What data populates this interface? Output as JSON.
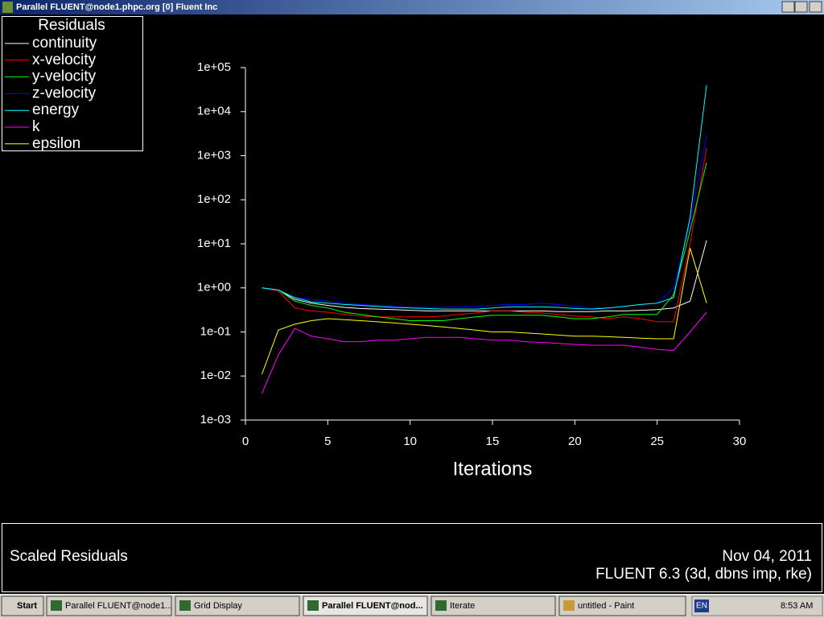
{
  "window": {
    "title": "Parallel FLUENT@node1.phpc.org [0] Fluent Inc"
  },
  "chart_data": {
    "type": "line",
    "legend_title": "Residuals",
    "x_label": "Iterations",
    "x": [
      1,
      2,
      3,
      4,
      5,
      6,
      7,
      8,
      9,
      10,
      11,
      12,
      13,
      14,
      15,
      16,
      17,
      18,
      19,
      20,
      21,
      22,
      23,
      24,
      25,
      26,
      27,
      28
    ],
    "xlim": [
      0,
      30
    ],
    "xticks": [
      0,
      5,
      10,
      15,
      20,
      25,
      30
    ],
    "ylim": [
      0.001,
      100000
    ],
    "log_y": true,
    "yticks": [
      {
        "value": 100000,
        "label": "1e+05"
      },
      {
        "value": 10000,
        "label": "1e+04"
      },
      {
        "value": 1000,
        "label": "1e+03"
      },
      {
        "value": 100,
        "label": "1e+02"
      },
      {
        "value": 10,
        "label": "1e+01"
      },
      {
        "value": 1,
        "label": "1e+00"
      },
      {
        "value": 0.1,
        "label": "1e-01"
      },
      {
        "value": 0.01,
        "label": "1e-02"
      },
      {
        "value": 0.001,
        "label": "1e-03"
      }
    ],
    "series": [
      {
        "name": "continuity",
        "color": "#ffffff",
        "values": [
          1,
          0.9,
          0.55,
          0.45,
          0.4,
          0.36,
          0.34,
          0.33,
          0.32,
          0.31,
          0.3,
          0.3,
          0.3,
          0.3,
          0.3,
          0.3,
          0.3,
          0.3,
          0.29,
          0.29,
          0.29,
          0.3,
          0.3,
          0.31,
          0.32,
          0.35,
          0.5,
          12
        ]
      },
      {
        "name": "x-velocity",
        "color": "#ff0000",
        "values": [
          1,
          0.85,
          0.35,
          0.3,
          0.28,
          0.25,
          0.23,
          0.22,
          0.22,
          0.22,
          0.22,
          0.23,
          0.25,
          0.27,
          0.3,
          0.3,
          0.28,
          0.27,
          0.25,
          0.23,
          0.22,
          0.2,
          0.22,
          0.2,
          0.17,
          0.17,
          10,
          1500
        ]
      },
      {
        "name": "y-velocity",
        "color": "#00ff00",
        "values": [
          1,
          0.9,
          0.5,
          0.4,
          0.35,
          0.28,
          0.25,
          0.22,
          0.2,
          0.18,
          0.18,
          0.18,
          0.2,
          0.22,
          0.24,
          0.24,
          0.24,
          0.24,
          0.22,
          0.2,
          0.2,
          0.22,
          0.25,
          0.25,
          0.25,
          0.7,
          20,
          700
        ]
      },
      {
        "name": "z-velocity",
        "color": "#0000ff",
        "values": [
          1,
          0.9,
          0.6,
          0.55,
          0.5,
          0.45,
          0.42,
          0.4,
          0.38,
          0.36,
          0.36,
          0.36,
          0.37,
          0.38,
          0.4,
          0.42,
          0.42,
          0.45,
          0.42,
          0.38,
          0.35,
          0.35,
          0.38,
          0.42,
          0.45,
          1,
          30,
          3000
        ]
      },
      {
        "name": "energy",
        "color": "#00ffff",
        "values": [
          1,
          0.9,
          0.6,
          0.48,
          0.45,
          0.42,
          0.4,
          0.38,
          0.36,
          0.35,
          0.34,
          0.33,
          0.33,
          0.33,
          0.35,
          0.37,
          0.37,
          0.37,
          0.36,
          0.34,
          0.33,
          0.35,
          0.38,
          0.42,
          0.45,
          0.6,
          40,
          40000
        ]
      },
      {
        "name": "k",
        "color": "#ff00ff",
        "values": [
          0.004,
          0.03,
          0.12,
          0.08,
          0.07,
          0.06,
          0.06,
          0.065,
          0.065,
          0.07,
          0.075,
          0.075,
          0.075,
          0.07,
          0.065,
          0.065,
          0.06,
          0.058,
          0.055,
          0.052,
          0.05,
          0.05,
          0.05,
          0.045,
          0.04,
          0.038,
          0.1,
          0.28
        ]
      },
      {
        "name": "epsilon",
        "color": "#ffff00",
        "values": [
          0.011,
          0.11,
          0.15,
          0.18,
          0.2,
          0.19,
          0.18,
          0.17,
          0.16,
          0.15,
          0.14,
          0.13,
          0.12,
          0.11,
          0.1,
          0.1,
          0.095,
          0.09,
          0.085,
          0.08,
          0.08,
          0.078,
          0.075,
          0.072,
          0.07,
          0.07,
          8,
          0.45
        ]
      }
    ]
  },
  "footer": {
    "left": "Scaled Residuals",
    "date": "Nov 04, 2011",
    "version": "FLUENT 6.3 (3d, dbns imp, rke)"
  },
  "taskbar": {
    "start": "Start",
    "items": [
      "Parallel FLUENT@node1...",
      "Grid Display",
      "Parallel FLUENT@nod...",
      "Iterate",
      "untitled - Paint"
    ],
    "lang": "EN",
    "clock": "8:53 AM"
  }
}
